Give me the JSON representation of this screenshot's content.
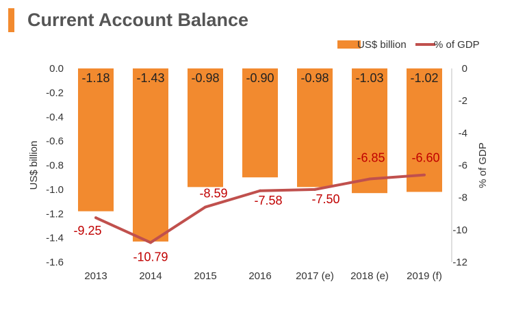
{
  "title": "Current Account Balance",
  "colors": {
    "accent": "#f28a2f",
    "bar": "#f28a2f",
    "line": "#c0504d",
    "line_label": "#c00000",
    "title": "#555555"
  },
  "chart_data": {
    "type": "bar",
    "categories": [
      "2013",
      "2014",
      "2015",
      "2016",
      "2017 (e)",
      "2018 (e)",
      "2019 (f)"
    ],
    "series": [
      {
        "name": "US$ billion",
        "type": "bar",
        "axis": "left",
        "values": [
          -1.18,
          -1.43,
          -0.98,
          -0.9,
          -0.98,
          -1.03,
          -1.02
        ],
        "labels": [
          "-1.18",
          "-1.43",
          "-0.98",
          "-0.90",
          "-0.98",
          "-1.03",
          "-1.02"
        ]
      },
      {
        "name": "% of GDP",
        "type": "line",
        "axis": "right",
        "values": [
          -9.25,
          -10.79,
          -8.59,
          -7.58,
          -7.5,
          -6.85,
          -6.6
        ],
        "labels": [
          "-9.25",
          "-10.79",
          "-8.59",
          "-7.58",
          "-7.50",
          "-6.85",
          "-6.60"
        ]
      }
    ],
    "ylabel": "US$ billion",
    "y2label": "% of GDP",
    "ylim": [
      -1.6,
      0.0
    ],
    "y2lim": [
      -12,
      0
    ],
    "yticks": [
      "0.0",
      "-0.2",
      "-0.4",
      "-0.6",
      "-0.8",
      "-1.0",
      "-1.2",
      "-1.4",
      "-1.6"
    ],
    "y2ticks": [
      "0",
      "-2",
      "-4",
      "-6",
      "-8",
      "-10",
      "-12"
    ],
    "legend": {
      "position": "top-right",
      "items": [
        "US$ billion",
        "% of GDP"
      ]
    },
    "grid": false
  }
}
